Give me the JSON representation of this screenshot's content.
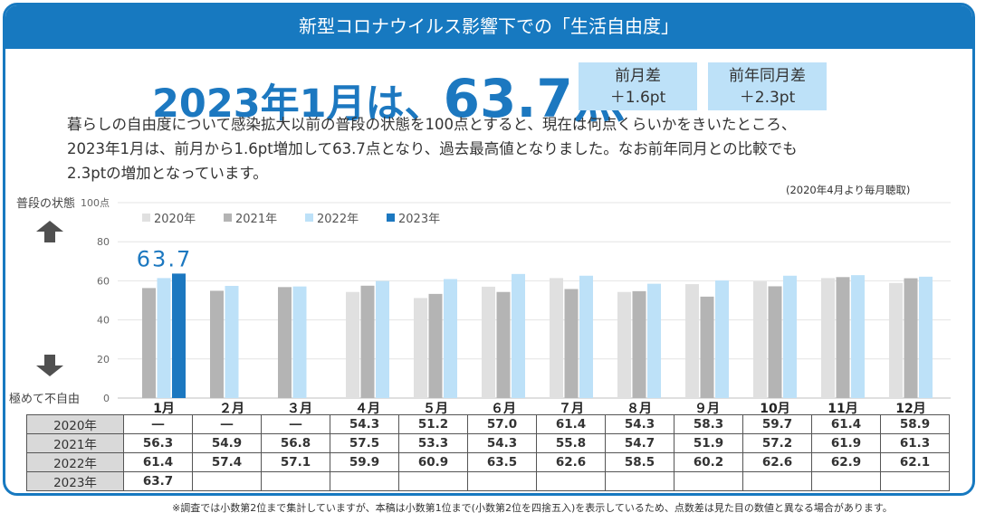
{
  "header": {
    "title": "新型コロナウイルス影響下での「生活自由度」"
  },
  "headline": {
    "prefix": "2023年1月は、",
    "value": "63.7点"
  },
  "diff_prev_month": {
    "label": "前月差",
    "value": "＋1.6pt"
  },
  "diff_prev_year": {
    "label": "前年同月差",
    "value": "＋2.3pt"
  },
  "description": {
    "line1": "暮らしの自由度について感染拡大以前の普段の状態を100点とすると、現在は何点くらいかをきいたところ、",
    "line2": "2023年1月は、前月から1.6pt増加して63.7点となり、過去最高値となりました。なお前年同月との比較でも",
    "line3": "2.3ptの増加となっています。"
  },
  "survey_note": "(2020年4月より毎月聴取)",
  "side": {
    "top_label": "普段の状態",
    "bottom_label": "極めて不自由"
  },
  "footnote": "※調査では小数第2位まで集計していますが、本稿は小数第1位まで(小数第2位を四捨五入)を表示しているため、点数差は見た目の数値と異なる場合があります。",
  "colors": {
    "y2020": "#e0e0e0",
    "y2021": "#b4b4b4",
    "y2022": "#bde1f8",
    "y2023": "#1c78c0",
    "accent": "#1779c0"
  },
  "chart_data": {
    "type": "bar",
    "categories": [
      "1月",
      "２月",
      "３月",
      "４月",
      "５月",
      "６月",
      "７月",
      "８月",
      "９月",
      "10月",
      "11月",
      "12月"
    ],
    "series": [
      {
        "name": "2020年",
        "values": [
          null,
          null,
          null,
          54.3,
          51.2,
          57.0,
          61.4,
          54.3,
          58.3,
          59.7,
          61.4,
          58.9
        ]
      },
      {
        "name": "2021年",
        "values": [
          56.3,
          54.9,
          56.8,
          57.5,
          53.3,
          54.3,
          55.8,
          54.7,
          51.9,
          57.2,
          61.9,
          61.3
        ]
      },
      {
        "name": "2022年",
        "values": [
          61.4,
          57.4,
          57.1,
          59.9,
          60.9,
          63.5,
          62.6,
          58.5,
          60.2,
          62.6,
          62.9,
          62.1
        ]
      },
      {
        "name": "2023年",
        "values": [
          63.7,
          null,
          null,
          null,
          null,
          null,
          null,
          null,
          null,
          null,
          null,
          null
        ]
      }
    ],
    "yticks": [
      "0",
      "20",
      "40",
      "60",
      "80",
      "100点"
    ],
    "ylim": [
      0,
      100
    ],
    "highlight_label": "63.7",
    "legend_position": "top-left",
    "grid": true
  },
  "table": {
    "rows": [
      {
        "label": "2020年",
        "cells": [
          "―",
          "―",
          "―",
          "54.3",
          "51.2",
          "57.0",
          "61.4",
          "54.3",
          "58.3",
          "59.7",
          "61.4",
          "58.9"
        ]
      },
      {
        "label": "2021年",
        "cells": [
          "56.3",
          "54.9",
          "56.8",
          "57.5",
          "53.3",
          "54.3",
          "55.8",
          "54.7",
          "51.9",
          "57.2",
          "61.9",
          "61.3"
        ]
      },
      {
        "label": "2022年",
        "cells": [
          "61.4",
          "57.4",
          "57.1",
          "59.9",
          "60.9",
          "63.5",
          "62.6",
          "58.5",
          "60.2",
          "62.6",
          "62.9",
          "62.1"
        ]
      },
      {
        "label": "2023年",
        "cells": [
          "63.7",
          "",
          "",
          "",
          "",
          "",
          "",
          "",
          "",
          "",
          "",
          ""
        ]
      }
    ]
  }
}
